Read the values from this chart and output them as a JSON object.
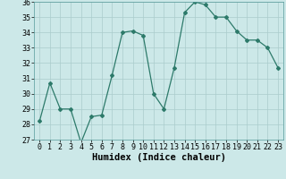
{
  "x": [
    0,
    1,
    2,
    3,
    4,
    5,
    6,
    7,
    8,
    9,
    10,
    11,
    12,
    13,
    14,
    15,
    16,
    17,
    18,
    19,
    20,
    21,
    22,
    23
  ],
  "y": [
    28.2,
    30.7,
    29.0,
    29.0,
    26.8,
    28.5,
    28.6,
    31.2,
    34.0,
    34.1,
    33.8,
    30.0,
    29.0,
    31.7,
    35.3,
    36.0,
    35.8,
    35.0,
    35.0,
    34.1,
    33.5,
    33.5,
    33.0,
    31.7
  ],
  "xlabel": "Humidex (Indice chaleur)",
  "ylim": [
    27,
    36
  ],
  "xlim": [
    -0.5,
    23.5
  ],
  "yticks": [
    27,
    28,
    29,
    30,
    31,
    32,
    33,
    34,
    35,
    36
  ],
  "xticks": [
    0,
    1,
    2,
    3,
    4,
    5,
    6,
    7,
    8,
    9,
    10,
    11,
    12,
    13,
    14,
    15,
    16,
    17,
    18,
    19,
    20,
    21,
    22,
    23
  ],
  "line_color": "#2d7a6a",
  "marker": "D",
  "marker_size": 2.0,
  "bg_color": "#cce8e8",
  "grid_color": "#aacccc",
  "xlabel_fontsize": 7.5,
  "tick_fontsize": 6.0,
  "linewidth": 0.9
}
